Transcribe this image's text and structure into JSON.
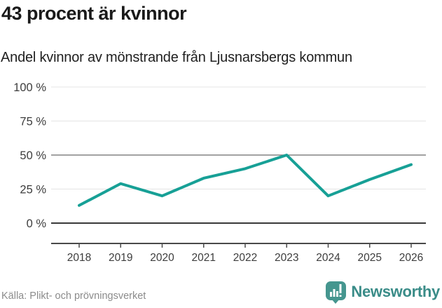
{
  "header": {
    "title": "43 procent är kvinnor",
    "subtitle": "Andel kvinnor av mönstrande från Ljusnarsbergs kommun"
  },
  "chart_data": {
    "type": "line",
    "title": "43 procent är kvinnor",
    "subtitle": "Andel kvinnor av mönstrande från Ljusnarsbergs kommun",
    "categories": [
      "2018",
      "2019",
      "2020",
      "2021",
      "2022",
      "2023",
      "2024",
      "2025",
      "2026"
    ],
    "series": [
      {
        "name": "Andel kvinnor av mönstrande",
        "values": [
          13,
          29,
          20,
          33,
          40,
          50,
          20,
          32,
          43
        ]
      }
    ],
    "unit": "%",
    "ylim": [
      0,
      100
    ],
    "yticks": [
      0,
      25,
      50,
      75,
      100
    ],
    "ytick_suffix": " %",
    "xlabel": "",
    "ylabel": "",
    "grid": "horizontal",
    "legend": "none"
  },
  "footer": {
    "source": "Källa: Plikt- och prövningsverket",
    "brand_name": "Newsworthy"
  },
  "colors": {
    "line": "#17a096",
    "grid_light": "#e4e4e4",
    "grid_mid": "#838383",
    "grid_zero": "#3a3a3a",
    "axis": "#4a4a4a",
    "tick_label": "#3d3d3d",
    "source_text": "#8b8b8b",
    "brand_teal_icon": "#45968f",
    "brand_teal_text": "#3a8c88",
    "title_text": "#1a1a1a"
  }
}
